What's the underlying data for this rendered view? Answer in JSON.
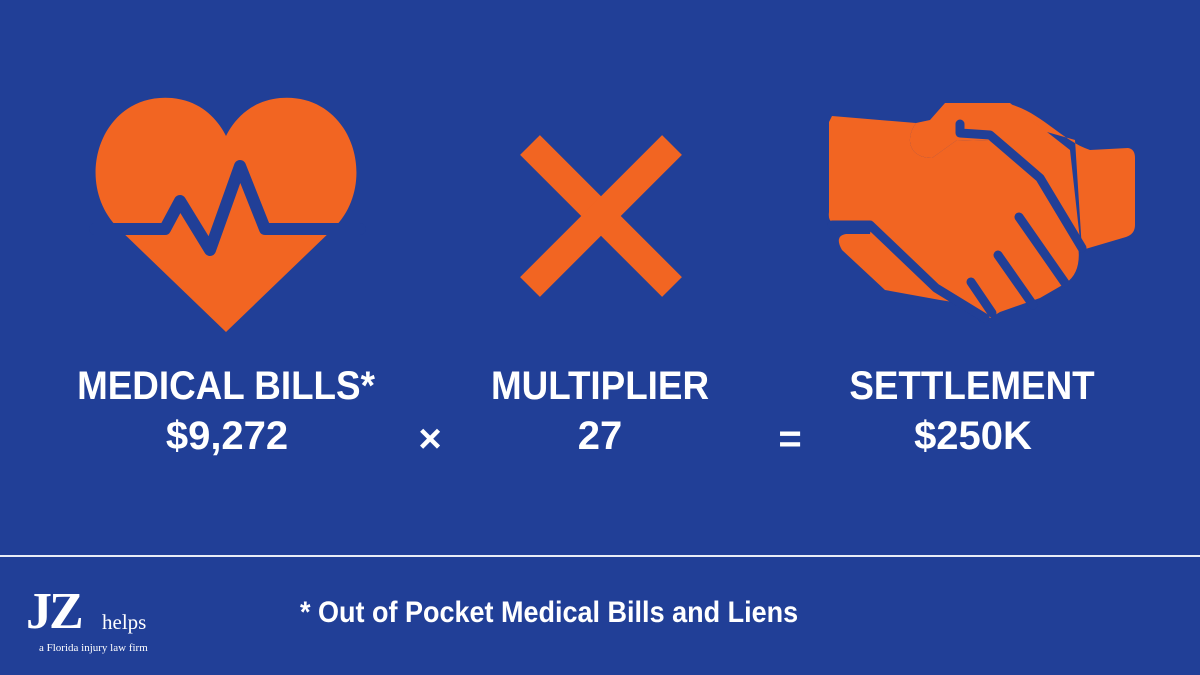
{
  "colors": {
    "background": "#213f97",
    "accent": "#f26522",
    "text": "#ffffff"
  },
  "icons": [
    "heart-pulse-icon",
    "multiply-icon",
    "handshake-icon"
  ],
  "formula": {
    "medical": {
      "title": "MEDICAL BILLS*",
      "value": "$9,272"
    },
    "times": "×",
    "multiplier": {
      "title": "MULTIPLIER",
      "value": "27"
    },
    "equals": "=",
    "settlement": {
      "title": "SETTLEMENT",
      "value": "$250K"
    }
  },
  "footnote": "* Out of Pocket Medical Bills and Liens",
  "logo": {
    "mark": "JZ",
    "word": "helps",
    "tagline": "a Florida injury law firm"
  }
}
